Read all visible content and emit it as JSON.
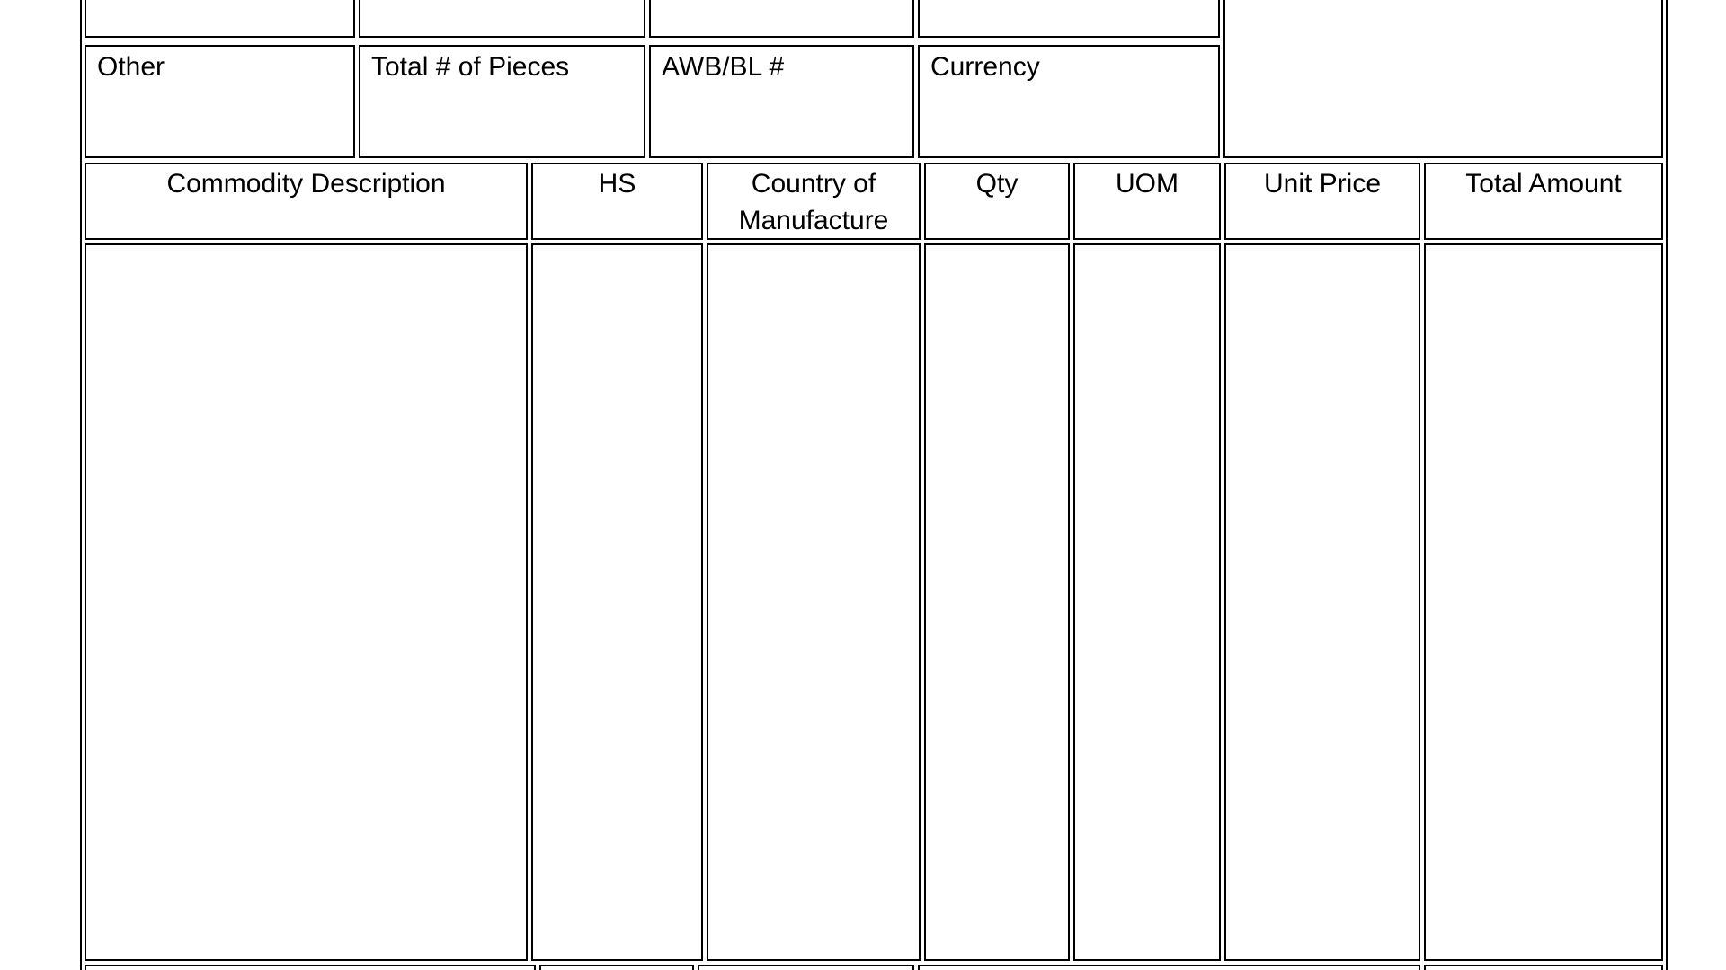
{
  "page": {
    "background_color": "#ffffff",
    "border_color": "#000000",
    "text_color": "#000000"
  },
  "shipment_info_row": {
    "fields": [
      {
        "label": "Other"
      },
      {
        "label": "Total # of Pieces"
      },
      {
        "label": "AWB/BL #"
      },
      {
        "label": "Currency"
      }
    ]
  },
  "line_items_table": {
    "column_headers": [
      "Commodity Description",
      "HS",
      "Country of Manufacture",
      "Qty",
      "UOM",
      "Unit Price",
      "Total Amount"
    ]
  }
}
